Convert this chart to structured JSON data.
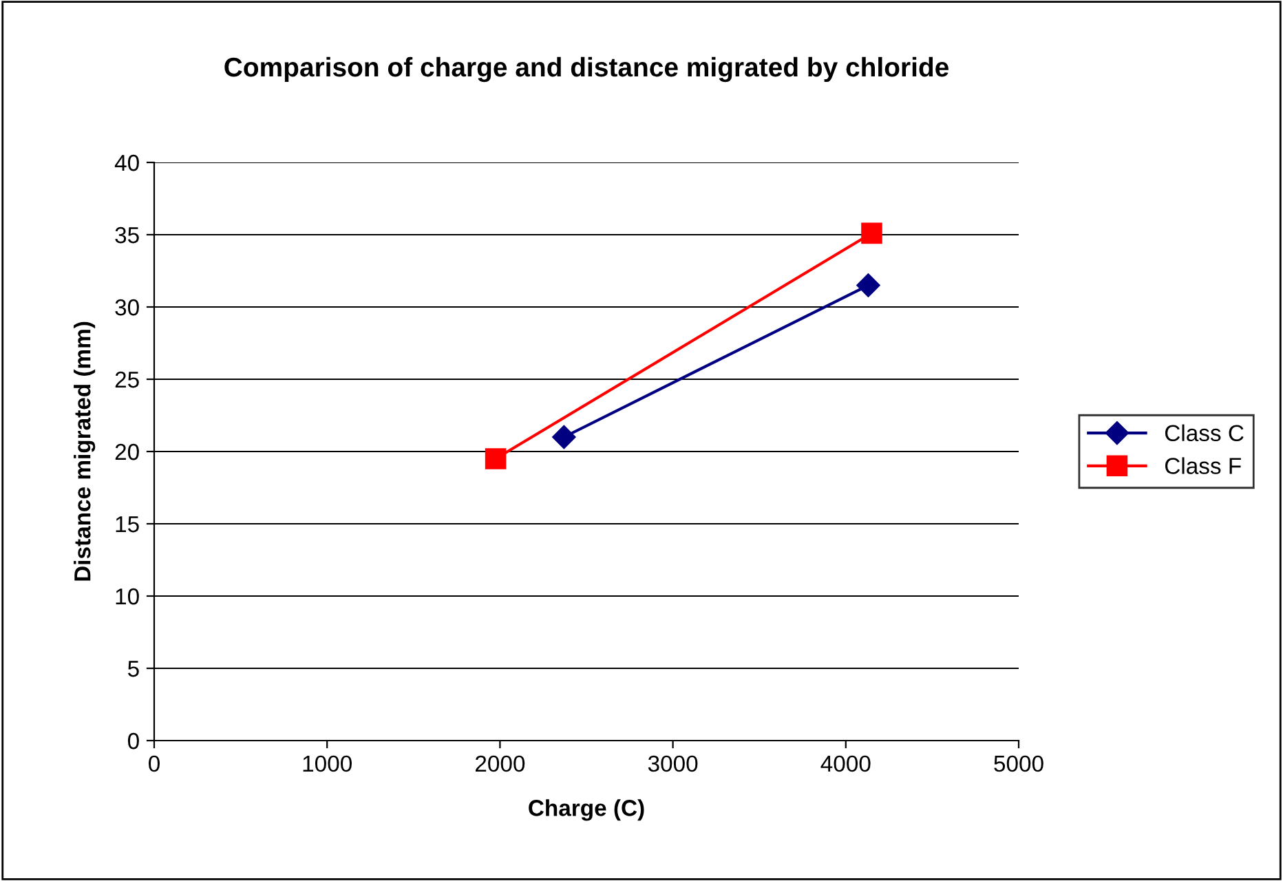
{
  "chart_data": {
    "type": "line",
    "title": "Comparison of charge and distance migrated by chloride",
    "xlabel": "Charge (C)",
    "ylabel": "Distance migrated (mm)",
    "series": [
      {
        "name": "Class C",
        "color": "#000080",
        "marker": "diamond",
        "x": [
          2370,
          4130
        ],
        "values": [
          21.0,
          31.5
        ]
      },
      {
        "name": "Class F",
        "color": "#ff0000",
        "marker": "square",
        "x": [
          1975,
          4150
        ],
        "values": [
          19.5,
          35.1
        ]
      }
    ],
    "xlim": [
      0,
      5000
    ],
    "xticks": [
      0,
      1000,
      2000,
      3000,
      4000,
      5000
    ],
    "ylim": [
      0,
      40
    ],
    "yticks": [
      0,
      5,
      10,
      15,
      20,
      25,
      30,
      35,
      40
    ],
    "grid": "y",
    "legend": "right",
    "line_style": "solid"
  }
}
